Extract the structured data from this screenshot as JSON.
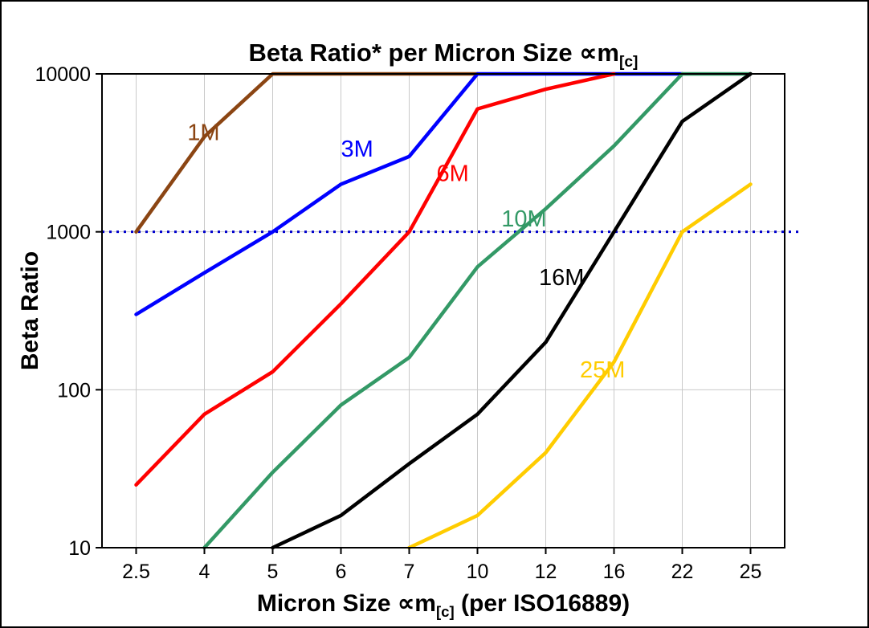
{
  "chart_data": {
    "type": "line",
    "title_main": "Beta Ratio* per Micron Size ∝m",
    "title_sub": "[c]",
    "xlabel_pre": "Micron Size ∝m",
    "xlabel_sub": "[c]",
    "xlabel_post": " (per ISO16889)",
    "ylabel": "Beta Ratio",
    "x_categories": [
      "2.5",
      "4",
      "5",
      "6",
      "7",
      "10",
      "12",
      "16",
      "22",
      "25"
    ],
    "y_ticks": [
      10,
      100,
      1000,
      10000
    ],
    "y_scale": "log",
    "ylim": [
      10,
      10000
    ],
    "grid": true,
    "legend_position": "none",
    "reference_line": {
      "value": 1000,
      "color": "#0000CC",
      "style": "dotted"
    },
    "series": [
      {
        "name": "1M",
        "color": "#8B4513",
        "values": [
          1000,
          4000,
          10000,
          10000,
          10000,
          10000,
          null,
          null,
          null,
          null
        ]
      },
      {
        "name": "3M",
        "color": "#0000FF",
        "values": [
          300,
          550,
          1000,
          2000,
          3000,
          10000,
          10000,
          10000,
          10000,
          null
        ]
      },
      {
        "name": "6M",
        "color": "#FF0000",
        "values": [
          25,
          70,
          130,
          350,
          1000,
          6000,
          8000,
          10000,
          null,
          null
        ]
      },
      {
        "name": "10M",
        "color": "#339966",
        "values": [
          null,
          10,
          30,
          80,
          160,
          600,
          1400,
          3500,
          10000,
          10000
        ]
      },
      {
        "name": "16M",
        "color": "#000000",
        "values": [
          null,
          null,
          10,
          16,
          34,
          70,
          200,
          1000,
          5000,
          10000
        ]
      },
      {
        "name": "25M",
        "color": "#FFCC00",
        "values": [
          null,
          null,
          null,
          null,
          10,
          16,
          40,
          150,
          1000,
          2000
        ]
      }
    ],
    "labels": [
      {
        "text": "1M",
        "color": "#8B4513",
        "xi": 0.75,
        "value": 3800
      },
      {
        "text": "3M",
        "color": "#0000FF",
        "xi": 3.0,
        "value": 3000
      },
      {
        "text": "6M",
        "color": "#FF0000",
        "xi": 4.4,
        "value": 2100
      },
      {
        "text": "10M",
        "color": "#339966",
        "xi": 5.35,
        "value": 1080
      },
      {
        "text": "16M",
        "color": "#000000",
        "xi": 5.9,
        "value": 460
      },
      {
        "text": "25M",
        "color": "#FFCC00",
        "xi": 6.5,
        "value": 120
      }
    ]
  }
}
